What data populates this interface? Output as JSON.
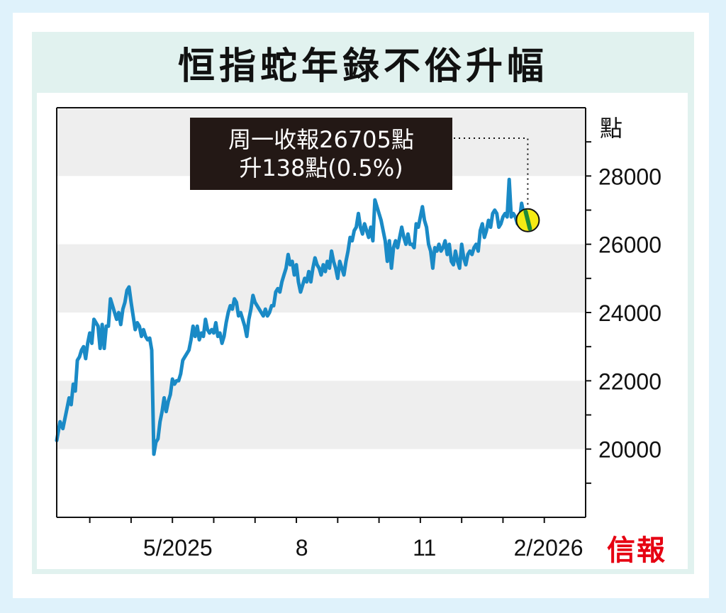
{
  "title": "恒指蛇年錄不俗升幅",
  "logo_text": "信報",
  "colors": {
    "background": "#dff2fb",
    "panel": "#e1f2ef",
    "band": "#eeeeee",
    "line": "#1a8ac6",
    "marker_fill": "#f5ea14",
    "marker_ring": "#111111",
    "callout_bg": "#231815",
    "logo": "#e60012"
  },
  "callout": {
    "line1": "周一收報26705點",
    "line2": "升138點(0.5%)"
  },
  "chart_data": {
    "type": "line",
    "title": "恒指蛇年錄不俗升幅",
    "ylabel": "點",
    "ylim": [
      18000,
      30000
    ],
    "yticks": [
      20000,
      22000,
      24000,
      26000,
      28000
    ],
    "ytick_labels": [
      "20000",
      "22000",
      "24000",
      "26000",
      "28000"
    ],
    "xlim": [
      0,
      12.8
    ],
    "xticks": [
      2.93,
      5.93,
      8.9,
      11.9
    ],
    "xtick_labels": [
      "5/2025",
      "8",
      "11",
      "2/2026"
    ],
    "alternating_bands": true,
    "series": [
      {
        "values": [
          [
            0.0,
            20250
          ],
          [
            0.08,
            20800
          ],
          [
            0.15,
            20600
          ],
          [
            0.25,
            21200
          ],
          [
            0.3,
            21500
          ],
          [
            0.35,
            21300
          ],
          [
            0.4,
            21900
          ],
          [
            0.45,
            21700
          ],
          [
            0.5,
            22600
          ],
          [
            0.55,
            22700
          ],
          [
            0.6,
            22900
          ],
          [
            0.65,
            23000
          ],
          [
            0.7,
            22650
          ],
          [
            0.75,
            23100
          ],
          [
            0.8,
            23400
          ],
          [
            0.85,
            23100
          ],
          [
            0.9,
            23800
          ],
          [
            0.95,
            23700
          ],
          [
            1.0,
            23600
          ],
          [
            1.05,
            22950
          ],
          [
            1.1,
            23650
          ],
          [
            1.15,
            22950
          ],
          [
            1.2,
            23600
          ],
          [
            1.25,
            23600
          ],
          [
            1.3,
            24400
          ],
          [
            1.35,
            24200
          ],
          [
            1.4,
            24000
          ],
          [
            1.45,
            23800
          ],
          [
            1.5,
            24000
          ],
          [
            1.55,
            23650
          ],
          [
            1.6,
            24100
          ],
          [
            1.65,
            24300
          ],
          [
            1.7,
            24650
          ],
          [
            1.75,
            24750
          ],
          [
            1.8,
            24300
          ],
          [
            1.85,
            23900
          ],
          [
            1.9,
            23500
          ],
          [
            1.95,
            23700
          ],
          [
            2.0,
            23600
          ],
          [
            2.05,
            23300
          ],
          [
            2.1,
            23500
          ],
          [
            2.15,
            23300
          ],
          [
            2.2,
            23200
          ],
          [
            2.25,
            23250
          ],
          [
            2.3,
            22900
          ],
          [
            2.35,
            19850
          ],
          [
            2.4,
            20200
          ],
          [
            2.45,
            20300
          ],
          [
            2.5,
            20800
          ],
          [
            2.55,
            21100
          ],
          [
            2.6,
            21500
          ],
          [
            2.65,
            21100
          ],
          [
            2.7,
            21400
          ],
          [
            2.75,
            21600
          ],
          [
            2.8,
            22050
          ],
          [
            2.85,
            21900
          ],
          [
            2.9,
            22000
          ],
          [
            2.95,
            22000
          ],
          [
            3.0,
            22200
          ],
          [
            3.05,
            22600
          ],
          [
            3.1,
            22700
          ],
          [
            3.15,
            22800
          ],
          [
            3.2,
            22900
          ],
          [
            3.25,
            23200
          ],
          [
            3.3,
            23600
          ],
          [
            3.35,
            23300
          ],
          [
            3.4,
            23600
          ],
          [
            3.45,
            23200
          ],
          [
            3.5,
            23400
          ],
          [
            3.55,
            23300
          ],
          [
            3.6,
            23800
          ],
          [
            3.65,
            23500
          ],
          [
            3.7,
            23400
          ],
          [
            3.75,
            23500
          ],
          [
            3.8,
            23400
          ],
          [
            3.85,
            23700
          ],
          [
            3.9,
            23300
          ],
          [
            3.95,
            23400
          ],
          [
            4.0,
            23100
          ],
          [
            4.05,
            23300
          ],
          [
            4.1,
            23700
          ],
          [
            4.15,
            24000
          ],
          [
            4.2,
            24200
          ],
          [
            4.25,
            24100
          ],
          [
            4.3,
            24400
          ],
          [
            4.35,
            24300
          ],
          [
            4.4,
            23900
          ],
          [
            4.45,
            24000
          ],
          [
            4.5,
            23800
          ],
          [
            4.55,
            23600
          ],
          [
            4.6,
            23300
          ],
          [
            4.65,
            23800
          ],
          [
            4.7,
            24100
          ],
          [
            4.75,
            24500
          ],
          [
            4.8,
            24300
          ],
          [
            4.85,
            24200
          ],
          [
            4.9,
            24100
          ],
          [
            4.95,
            24000
          ],
          [
            5.0,
            23900
          ],
          [
            5.05,
            24100
          ],
          [
            5.1,
            23900
          ],
          [
            5.15,
            24000
          ],
          [
            5.2,
            24200
          ],
          [
            5.25,
            24200
          ],
          [
            5.3,
            24600
          ],
          [
            5.35,
            24700
          ],
          [
            5.4,
            24600
          ],
          [
            5.45,
            24900
          ],
          [
            5.5,
            25100
          ],
          [
            5.55,
            25300
          ],
          [
            5.6,
            25700
          ],
          [
            5.65,
            25400
          ],
          [
            5.7,
            25500
          ],
          [
            5.75,
            25100
          ],
          [
            5.8,
            25400
          ],
          [
            5.85,
            24900
          ],
          [
            5.9,
            24600
          ],
          [
            5.95,
            24800
          ],
          [
            6.0,
            25000
          ],
          [
            6.05,
            24900
          ],
          [
            6.1,
            25200
          ],
          [
            6.15,
            24900
          ],
          [
            6.2,
            25300
          ],
          [
            6.25,
            25600
          ],
          [
            6.3,
            25400
          ],
          [
            6.35,
            25300
          ],
          [
            6.4,
            25100
          ],
          [
            6.45,
            25400
          ],
          [
            6.5,
            25200
          ],
          [
            6.55,
            25500
          ],
          [
            6.6,
            25300
          ],
          [
            6.65,
            25800
          ],
          [
            6.7,
            25500
          ],
          [
            6.75,
            25300
          ],
          [
            6.8,
            25000
          ],
          [
            6.85,
            25500
          ],
          [
            6.9,
            25300
          ],
          [
            6.95,
            25100
          ],
          [
            7.0,
            25500
          ],
          [
            7.05,
            25800
          ],
          [
            7.1,
            26200
          ],
          [
            7.15,
            26100
          ],
          [
            7.2,
            26400
          ],
          [
            7.25,
            26500
          ],
          [
            7.3,
            26900
          ],
          [
            7.35,
            26500
          ],
          [
            7.4,
            26300
          ],
          [
            7.45,
            26600
          ],
          [
            7.5,
            26400
          ],
          [
            7.55,
            26200
          ],
          [
            7.6,
            26500
          ],
          [
            7.65,
            26100
          ],
          [
            7.7,
            27300
          ],
          [
            7.75,
            27100
          ],
          [
            7.8,
            26900
          ],
          [
            7.85,
            26700
          ],
          [
            7.9,
            26400
          ],
          [
            7.95,
            26100
          ],
          [
            8.0,
            25500
          ],
          [
            8.05,
            26100
          ],
          [
            8.1,
            25300
          ],
          [
            8.15,
            25900
          ],
          [
            8.2,
            26100
          ],
          [
            8.25,
            25900
          ],
          [
            8.3,
            26200
          ],
          [
            8.35,
            26500
          ],
          [
            8.4,
            26200
          ],
          [
            8.45,
            26000
          ],
          [
            8.5,
            26300
          ],
          [
            8.55,
            26000
          ],
          [
            8.6,
            26000
          ],
          [
            8.65,
            25900
          ],
          [
            8.7,
            26600
          ],
          [
            8.75,
            26500
          ],
          [
            8.8,
            26800
          ],
          [
            8.85,
            27100
          ],
          [
            8.9,
            26700
          ],
          [
            8.95,
            26500
          ],
          [
            9.0,
            26000
          ],
          [
            9.05,
            25800
          ],
          [
            9.1,
            25300
          ],
          [
            9.15,
            25900
          ],
          [
            9.2,
            25800
          ],
          [
            9.25,
            26000
          ],
          [
            9.3,
            25800
          ],
          [
            9.35,
            25900
          ],
          [
            9.4,
            26100
          ],
          [
            9.45,
            25700
          ],
          [
            9.5,
            26000
          ],
          [
            9.55,
            25500
          ],
          [
            9.6,
            25400
          ],
          [
            9.65,
            25800
          ],
          [
            9.7,
            25500
          ],
          [
            9.75,
            25300
          ],
          [
            9.8,
            26000
          ],
          [
            9.85,
            25600
          ],
          [
            9.9,
            25400
          ],
          [
            9.95,
            25700
          ],
          [
            10.0,
            25800
          ],
          [
            10.05,
            25700
          ],
          [
            10.1,
            25900
          ],
          [
            10.15,
            26000
          ],
          [
            10.2,
            25800
          ],
          [
            10.25,
            26400
          ],
          [
            10.3,
            26600
          ],
          [
            10.35,
            26200
          ],
          [
            10.4,
            26400
          ],
          [
            10.45,
            26700
          ],
          [
            10.5,
            26500
          ],
          [
            10.55,
            26900
          ],
          [
            10.6,
            27000
          ],
          [
            10.65,
            26900
          ],
          [
            10.7,
            26500
          ],
          [
            10.75,
            26600
          ],
          [
            10.8,
            26800
          ],
          [
            10.85,
            26900
          ],
          [
            10.9,
            26800
          ],
          [
            10.95,
            27900
          ],
          [
            11.0,
            26800
          ],
          [
            11.05,
            26900
          ],
          [
            11.1,
            26800
          ],
          [
            11.15,
            26600
          ],
          [
            11.2,
            26700
          ],
          [
            11.25,
            27200
          ],
          [
            11.3,
            26900
          ],
          [
            11.35,
            26600
          ],
          [
            11.4,
            26705
          ]
        ]
      }
    ],
    "annotation": {
      "text_lines": [
        "周一收報26705點",
        "升138點(0.5%)"
      ],
      "x": 11.4,
      "y": 26705
    }
  }
}
